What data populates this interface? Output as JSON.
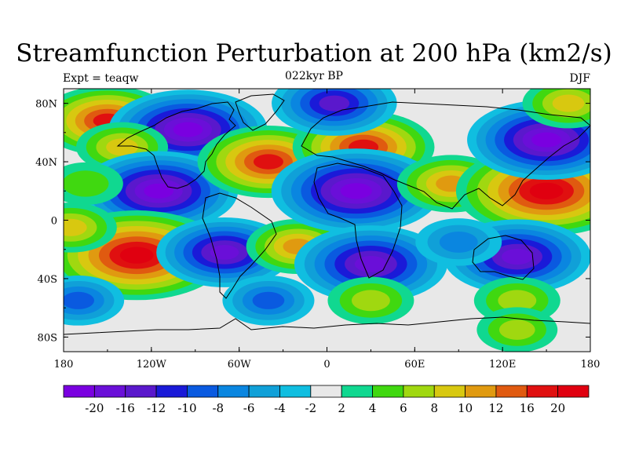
{
  "title": "Streamfunction Perturbation at 200 hPa (km2/s)",
  "left_label": "Expt = teaqw",
  "center_label": "022kyr BP",
  "right_label": "DJF",
  "chart_data": {
    "type": "heatmap",
    "title": "Streamfunction Perturbation at 200 hPa (km2/s)",
    "units": "km2/s",
    "x_ticks": [
      "180",
      "120W",
      "60W",
      "0",
      "60E",
      "120E",
      "180"
    ],
    "y_ticks": [
      "80N",
      "40N",
      "0",
      "40S",
      "80S"
    ],
    "xlim": [
      -180,
      180
    ],
    "ylim": [
      -90,
      90
    ],
    "colorbar_labels": [
      "-20",
      "-16",
      "-12",
      "-10",
      "-8",
      "-6",
      "-4",
      "-2",
      "2",
      "4",
      "6",
      "8",
      "10",
      "12",
      "16",
      "20"
    ],
    "levels": [
      -20,
      -16,
      -12,
      -10,
      -8,
      -6,
      -4,
      -2,
      2,
      4,
      6,
      8,
      10,
      12,
      16,
      20
    ],
    "colors": [
      "#7a00e0",
      "#6a0fd8",
      "#5a18cc",
      "#1a1ad8",
      "#0a5ae0",
      "#0a86e0",
      "#10a0d8",
      "#10bee0",
      "#e8e8e8",
      "#10d890",
      "#40d810",
      "#a0d810",
      "#d8c810",
      "#e09a10",
      "#e05a10",
      "#e01010",
      "#e00010"
    ],
    "features": [
      {
        "lon": -150,
        "lat": 68,
        "value": 14
      },
      {
        "lon": -95,
        "lat": 62,
        "value": -18
      },
      {
        "lon": -140,
        "lat": 50,
        "value": 6
      },
      {
        "lon": -115,
        "lat": 20,
        "value": -18
      },
      {
        "lon": -130,
        "lat": -24,
        "value": 22
      },
      {
        "lon": -175,
        "lat": -5,
        "value": 6
      },
      {
        "lon": -70,
        "lat": -22,
        "value": -14
      },
      {
        "lon": -20,
        "lat": -18,
        "value": 8
      },
      {
        "lon": -40,
        "lat": 40,
        "value": 15
      },
      {
        "lon": 25,
        "lat": 50,
        "value": 15
      },
      {
        "lon": 5,
        "lat": 80,
        "value": -12
      },
      {
        "lon": 20,
        "lat": 20,
        "value": -20
      },
      {
        "lon": 30,
        "lat": -30,
        "value": -17
      },
      {
        "lon": 85,
        "lat": 25,
        "value": 9
      },
      {
        "lon": 150,
        "lat": 20,
        "value": 22
      },
      {
        "lon": 130,
        "lat": -25,
        "value": -16
      },
      {
        "lon": 90,
        "lat": -15,
        "value": -5
      },
      {
        "lon": 150,
        "lat": 55,
        "value": -18
      },
      {
        "lon": 165,
        "lat": 80,
        "value": 6
      },
      {
        "lon": 30,
        "lat": -55,
        "value": 5
      },
      {
        "lon": 130,
        "lat": -55,
        "value": 5
      },
      {
        "lon": 130,
        "lat": -75,
        "value": 4
      },
      {
        "lon": -170,
        "lat": -55,
        "value": -6
      },
      {
        "lon": -40,
        "lat": -55,
        "value": -6
      },
      {
        "lon": -165,
        "lat": 25,
        "value": 3
      }
    ]
  }
}
